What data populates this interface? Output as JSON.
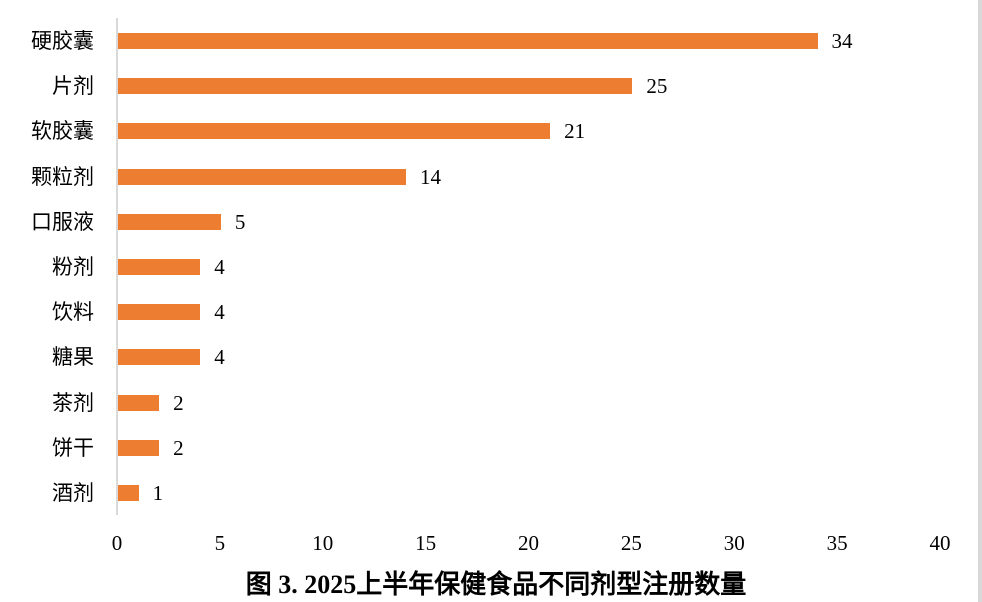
{
  "chart_data": {
    "type": "bar",
    "orientation": "horizontal",
    "title": "图 3. 2025上半年保健食品不同剂型注册数量",
    "xlabel": "",
    "ylabel": "",
    "categories": [
      "硬胶囊",
      "片剂",
      "软胶囊",
      "颗粒剂",
      "口服液",
      "粉剂",
      "饮料",
      "糖果",
      "茶剂",
      "饼干",
      "酒剂"
    ],
    "values": [
      34,
      25,
      21,
      14,
      5,
      4,
      4,
      4,
      2,
      2,
      1
    ],
    "xlim": [
      0,
      40
    ],
    "xticks": [
      "0",
      "5",
      "10",
      "15",
      "20",
      "25",
      "30",
      "35",
      "40"
    ],
    "grid": false,
    "legend": null,
    "data_labels": true,
    "bar_color": "#ED7D31"
  }
}
